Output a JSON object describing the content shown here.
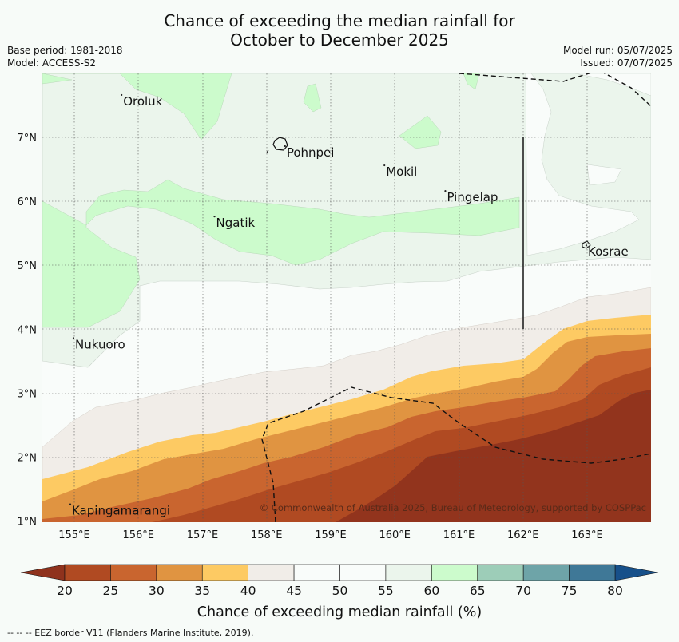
{
  "title_line1": "Chance of exceeding the median rainfall for",
  "title_line2": "October to December 2025",
  "meta": {
    "base_period": "Base period: 1981-2018",
    "model": "Model: ACCESS-S2",
    "model_run": "Model run: 05/07/2025",
    "issued": "Issued: 07/07/2025"
  },
  "axes": {
    "lon_ticks": [
      "155°E",
      "156°E",
      "157°E",
      "158°E",
      "159°E",
      "160°E",
      "161°E",
      "162°E",
      "163°E"
    ],
    "lat_ticks": [
      "7°N",
      "6°N",
      "5°N",
      "4°N",
      "3°N",
      "2°N",
      "1°N"
    ]
  },
  "places": [
    {
      "name": "Oroluk",
      "lon": 155.75,
      "lat": 7.65
    },
    {
      "name": "Pohnpei",
      "lon": 158.3,
      "lat": 6.85
    },
    {
      "name": "Mokil",
      "lon": 159.85,
      "lat": 6.55
    },
    {
      "name": "Pingelap",
      "lon": 160.8,
      "lat": 6.15
    },
    {
      "name": "Ngatik",
      "lon": 157.2,
      "lat": 5.75
    },
    {
      "name": "Kosrae",
      "lon": 163.0,
      "lat": 5.3
    },
    {
      "name": "Nukuoro",
      "lon": 155.0,
      "lat": 3.85
    },
    {
      "name": "Kapingamarangi",
      "lon": 154.95,
      "lat": 1.25
    }
  ],
  "copyright": "© Commonwealth of Australia 2025, Bureau of Meteorology, supported by COSPPac",
  "colorbar": {
    "label": "Chance of exceeding median rainfall (%)",
    "ticks": [
      "20",
      "25",
      "30",
      "35",
      "40",
      "45",
      "50",
      "55",
      "60",
      "65",
      "70",
      "75",
      "80"
    ],
    "colors": [
      "#b04a22",
      "#c9652f",
      "#e09441",
      "#fdca63",
      "#f1ede8",
      "#f9fcfa",
      "#f9fcfa",
      "#ebf5ec",
      "#ccfbcc",
      "#9dcdb8",
      "#6ea4a8",
      "#3f7897"
    ],
    "under_color": "#8f321d",
    "over_color": "#17508a"
  },
  "footnote": "--  --  -- EEZ border V11 (Flanders Marine Institute, 2019)."
}
